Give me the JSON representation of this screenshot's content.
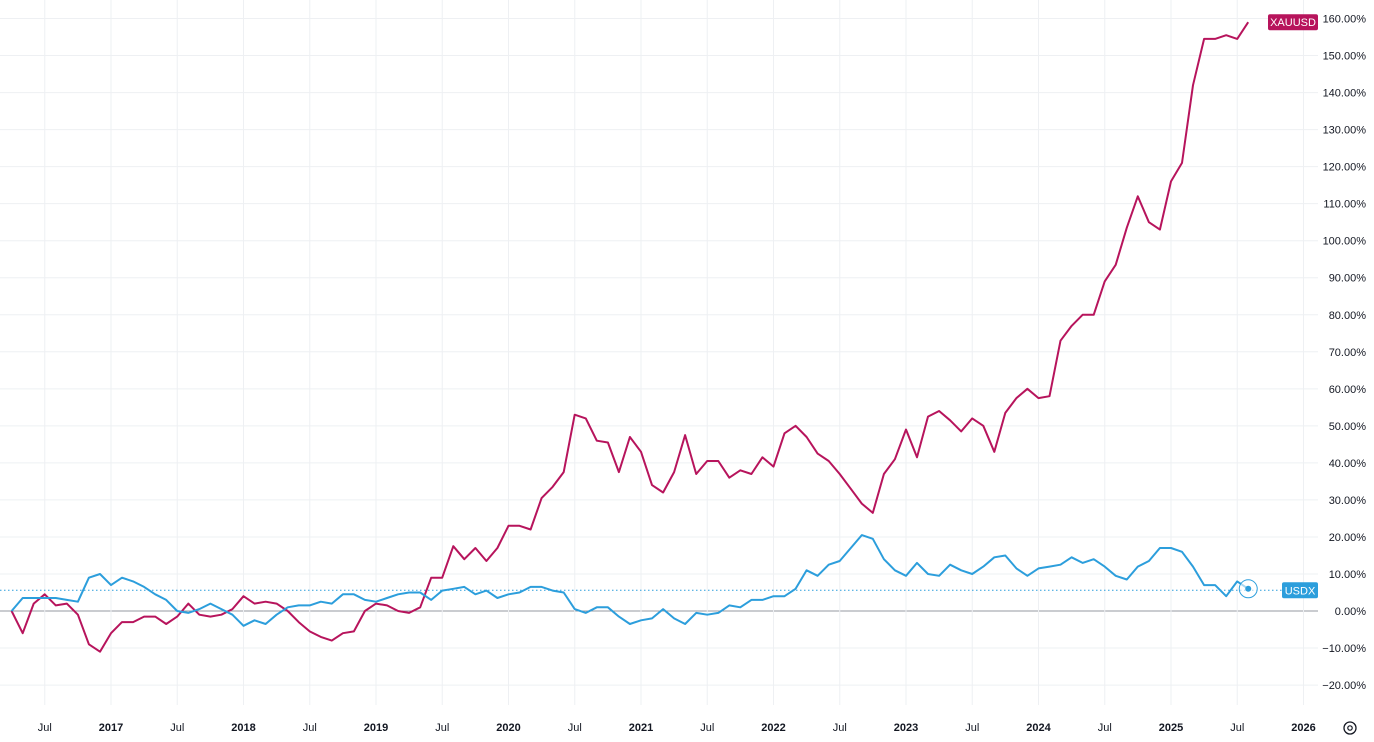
{
  "chart_data": {
    "type": "line",
    "ylim": [
      -25,
      163
    ],
    "y_ticks": [
      160,
      150,
      140,
      130,
      120,
      110,
      100,
      90,
      80,
      70,
      60,
      50,
      40,
      30,
      20,
      10,
      0,
      -10,
      -20
    ],
    "y_tick_format": "percent_2dp",
    "x_ticks": [
      {
        "label": "Jul",
        "t": 2016.5,
        "bold": false
      },
      {
        "label": "2017",
        "t": 2017.0,
        "bold": true
      },
      {
        "label": "Jul",
        "t": 2017.5,
        "bold": false
      },
      {
        "label": "2018",
        "t": 2018.0,
        "bold": true
      },
      {
        "label": "Jul",
        "t": 2018.5,
        "bold": false
      },
      {
        "label": "2019",
        "t": 2019.0,
        "bold": true
      },
      {
        "label": "Jul",
        "t": 2019.5,
        "bold": false
      },
      {
        "label": "2020",
        "t": 2020.0,
        "bold": true
      },
      {
        "label": "Jul",
        "t": 2020.5,
        "bold": false
      },
      {
        "label": "2021",
        "t": 2021.0,
        "bold": true
      },
      {
        "label": "Jul",
        "t": 2021.5,
        "bold": false
      },
      {
        "label": "2022",
        "t": 2022.0,
        "bold": true
      },
      {
        "label": "Jul",
        "t": 2022.5,
        "bold": false
      },
      {
        "label": "2023",
        "t": 2023.0,
        "bold": true
      },
      {
        "label": "Jul",
        "t": 2023.5,
        "bold": false
      },
      {
        "label": "2024",
        "t": 2024.0,
        "bold": true
      },
      {
        "label": "Jul",
        "t": 2024.5,
        "bold": false
      },
      {
        "label": "2025",
        "t": 2025.0,
        "bold": true
      },
      {
        "label": "Jul",
        "t": 2025.5,
        "bold": false
      },
      {
        "label": "2026",
        "t": 2026.0,
        "bold": true
      }
    ],
    "x_start": 2016.25,
    "x_step": 0.08333,
    "grid": true,
    "series": [
      {
        "name": "XAUUSD",
        "color": "#b7145c",
        "values": [
          0,
          -6,
          2,
          4.5,
          1.5,
          2,
          -1,
          -9,
          -11,
          -6,
          -3,
          -3,
          -1.5,
          -1.5,
          -3.5,
          -1.5,
          2,
          -1,
          -1.5,
          -1,
          0.5,
          4,
          2,
          2.5,
          2,
          0,
          -3,
          -5.5,
          -7,
          -8,
          -6,
          -5.5,
          0,
          2,
          1.5,
          0,
          -0.5,
          1,
          9,
          9,
          17.5,
          14,
          17,
          13.5,
          17,
          23,
          23,
          22,
          30.5,
          33.5,
          37.5,
          53,
          52,
          46,
          45.5,
          37.5,
          47,
          43,
          34,
          32,
          37.5,
          47.5,
          37,
          40.5,
          40.5,
          36,
          38,
          37,
          41.5,
          39,
          48,
          50,
          47,
          42.5,
          40.5,
          37,
          33,
          29,
          26.5,
          37,
          41,
          49,
          41.5,
          52.5,
          54,
          51.5,
          48.5,
          52,
          50,
          43,
          53.5,
          57.5,
          60,
          57.5,
          58,
          73,
          77,
          80,
          80,
          89,
          93.5,
          103.5,
          112,
          105,
          103,
          116,
          121,
          142,
          154.5,
          154.5,
          155.5,
          154.5,
          159
        ]
      },
      {
        "name": "USDX",
        "color": "#2c9edc",
        "values": [
          0,
          3.5,
          3.5,
          3.5,
          3.5,
          3,
          2.5,
          9,
          10,
          7,
          9,
          8,
          6.5,
          4.5,
          3,
          0,
          -0.5,
          0.5,
          2,
          0.5,
          -1,
          -4,
          -2.5,
          -3.5,
          -1,
          1,
          1.5,
          1.5,
          2.5,
          2,
          4.5,
          4.5,
          3,
          2.5,
          3.5,
          4.5,
          5,
          5,
          3,
          5.5,
          6,
          6.5,
          4.5,
          5.5,
          3.5,
          4.5,
          5,
          6.5,
          6.5,
          5.5,
          5,
          0.5,
          -0.5,
          1,
          1,
          -1.5,
          -3.5,
          -2.5,
          -2,
          0.5,
          -2,
          -3.5,
          -0.5,
          -1,
          -0.5,
          1.5,
          1,
          3,
          3,
          4,
          4,
          6,
          11,
          9.5,
          12.5,
          13.5,
          17,
          20.5,
          19.5,
          14,
          11,
          9.5,
          13,
          10,
          9.5,
          12.5,
          11,
          10,
          12,
          14.5,
          15,
          11.5,
          9.5,
          11.5,
          12,
          12.5,
          14.5,
          13,
          14,
          12,
          9.5,
          8.5,
          12,
          13.5,
          17,
          17,
          16,
          12,
          7,
          7,
          4,
          8,
          6
        ]
      }
    ],
    "reference_line": {
      "value": 5.6,
      "color": "#2c9edc"
    },
    "badges": [
      {
        "series": "XAUUSD",
        "label": "XAUUSD",
        "color": "#b7145c"
      },
      {
        "series": "USDX",
        "label": "USDX",
        "color": "#2c9edc"
      }
    ]
  },
  "controls": {
    "settings_icon": "gear-icon"
  }
}
